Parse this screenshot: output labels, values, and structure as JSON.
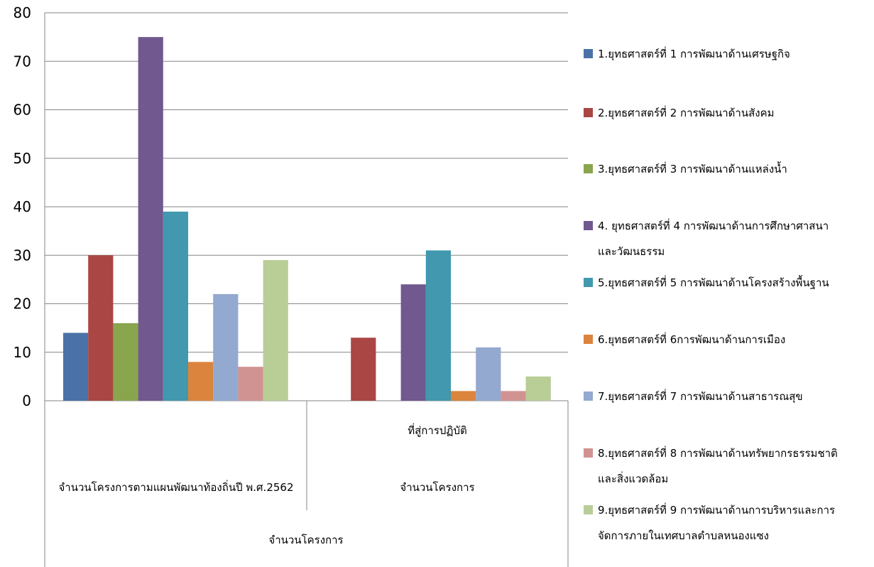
{
  "chart_data": {
    "type": "bar",
    "categories": [
      "จำนวนโครงการตามแผนพัฒนาท้องถิ่นปี พ.ศ.2562",
      "ที่สู่การปฏิบัติ\nจำนวนโครงการ"
    ],
    "series": [
      {
        "name": "1.ยุทธศาสตร์ที่ 1 การพัฒนาด้านเศรษฐกิจ",
        "color": "#4a72a8",
        "values": [
          14,
          0
        ]
      },
      {
        "name": "2.ยุทธศาสตร์ที่ 2 การพัฒนาด้านสังคม",
        "color": "#aa4644",
        "values": [
          30,
          13
        ]
      },
      {
        "name": "3.ยุทธศาสตร์ที่ 3 การพัฒนาด้านแหล่งน้ำ",
        "color": "#89a54e",
        "values": [
          16,
          0
        ]
      },
      {
        "name": "4. ยุทธศาสตร์ที่ 4 การพัฒนาด้านการศึกษาศาสนาและวัฒนธรรม",
        "color": "#71588f",
        "values": [
          75,
          24
        ]
      },
      {
        "name": "5.ยุทธศาสตร์ที่ 5 การพัฒนาด้านโครงสร้างพื้นฐาน",
        "color": "#4198af",
        "values": [
          39,
          31
        ]
      },
      {
        "name": "6.ยุทธศาสตร์ที่ 6การพัฒนาด้านการเมือง",
        "color": "#db843d",
        "values": [
          8,
          2
        ]
      },
      {
        "name": "7.ยุทธศาสตร์ที่ 7 การพัฒนาด้านสาธารณสุข",
        "color": "#93a9cf",
        "values": [
          22,
          11
        ]
      },
      {
        "name": "8.ยุทธศาสตร์ที่ 8 การพัฒนาด้านทรัพยากรธรรมชาติและสิ่งแวดล้อม",
        "color": "#d19392",
        "values": [
          7,
          2
        ]
      },
      {
        "name": "9.ยุทธศาสตร์ที่ 9 การพัฒนาด้านการบริหารและการจัดการภายในเทศบาลตำบลหนองแซง",
        "color": "#b9cd96",
        "values": [
          29,
          5
        ]
      }
    ],
    "legend_lines": [
      [
        "1.ยุทธศาสตร์ที่ 1 การพัฒนาด้านเศรษฐกิจ"
      ],
      [
        "2.ยุทธศาสตร์ที่ 2 การพัฒนาด้านสังคม"
      ],
      [
        "3.ยุทธศาสตร์ที่ 3 การพัฒนาด้านแหล่งน้ำ"
      ],
      [
        "4. ยุทธศาสตร์ที่ 4 การพัฒนาด้านการศึกษาศาสนา",
        "และวัฒนธรรม"
      ],
      [
        "5.ยุทธศาสตร์ที่ 5 การพัฒนาด้านโครงสร้างพื้นฐาน"
      ],
      [
        "6.ยุทธศาสตร์ที่ 6การพัฒนาด้านการเมือง"
      ],
      [
        "7.ยุทธศาสตร์ที่ 7 การพัฒนาด้านสาธารณสุข"
      ],
      [
        "8.ยุทธศาสตร์ที่ 8 การพัฒนาด้านทรัพยากรธรรมชาติ",
        "และสิ่งแวดล้อม"
      ],
      [
        "9.ยุทธศาสตร์ที่ 9 การพัฒนาด้านการบริหารและการ",
        "จัดการภายในเทศบาลตำบลหนองแซง"
      ]
    ],
    "group_label": "จำนวนโครงการ",
    "yticks": [
      0,
      10,
      20,
      30,
      40,
      50,
      60,
      70,
      80
    ],
    "ylim": [
      0,
      80
    ],
    "grid": true,
    "legend_position": "right"
  }
}
